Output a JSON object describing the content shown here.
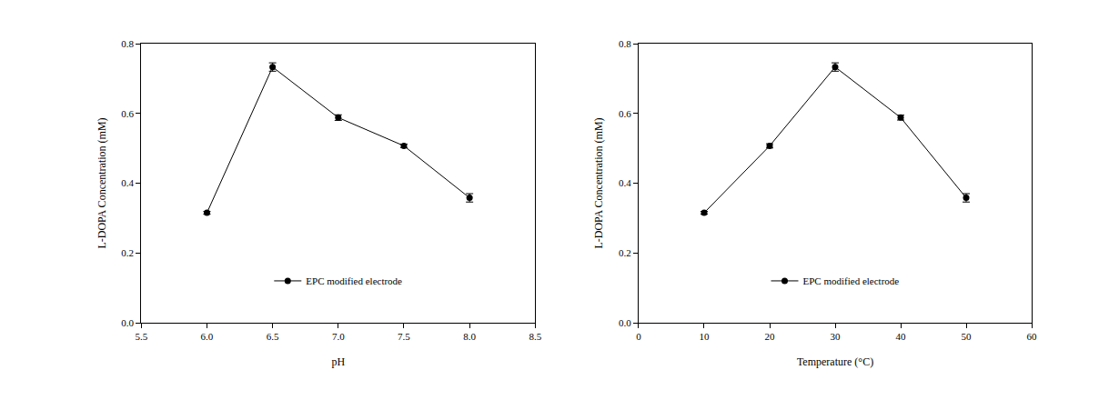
{
  "chart_data": [
    {
      "type": "line",
      "x_label": "pH",
      "y_label": "L-DOPA Concentration (mM)",
      "x": [
        6.0,
        6.5,
        7.0,
        7.5,
        8.0
      ],
      "series": [
        {
          "name": "EPC modified electrode",
          "color": "#000000",
          "marker": "circle",
          "line_style": "solid",
          "values": [
            0.315,
            0.733,
            0.588,
            0.507,
            0.358
          ],
          "error": [
            0.004,
            0.012,
            0.008,
            0.005,
            0.012
          ]
        }
      ],
      "xlim": [
        5.5,
        8.5
      ],
      "xticks": [
        5.5,
        {
          "value": 6,
          "label": "6.0"
        },
        6.5,
        {
          "value": 7,
          "label": "7.0"
        },
        7.5,
        {
          "value": 8,
          "label": "8.0"
        },
        8.5
      ],
      "ylim": [
        0,
        0.8
      ],
      "yticks": [
        {
          "value": 0,
          "label": "0.0"
        },
        0.2,
        0.4,
        0.6,
        0.8
      ],
      "grid": false,
      "legend": "lower center"
    },
    {
      "type": "line",
      "x_label": "Temperature (°C)",
      "y_label": "L-DOPA Concentration (mM)",
      "x": [
        10,
        20,
        30,
        40,
        50
      ],
      "series": [
        {
          "name": "EPC modified electrode",
          "color": "#000000",
          "marker": "circle",
          "line_style": "solid",
          "values": [
            0.315,
            0.507,
            0.733,
            0.588,
            0.358
          ],
          "error": [
            0.004,
            0.006,
            0.012,
            0.007,
            0.012
          ]
        }
      ],
      "xlim": [
        0,
        60
      ],
      "xticks": [
        0,
        10,
        20,
        30,
        40,
        50,
        60
      ],
      "ylim": [
        0,
        0.8
      ],
      "yticks": [
        {
          "value": 0,
          "label": "0.0"
        },
        0.2,
        0.4,
        0.6,
        0.8
      ],
      "grid": false,
      "legend": "lower center"
    }
  ]
}
